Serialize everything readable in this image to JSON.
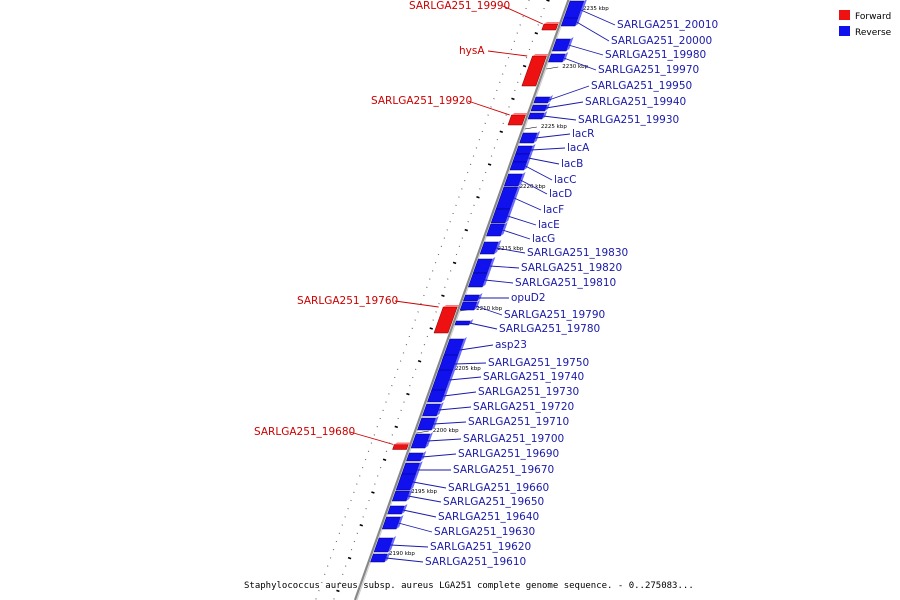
{
  "caption": "Staphylococcus aureus subsp. aureus LGA251 complete genome sequence. - 0..275083...",
  "legend": [
    {
      "label": "Forward",
      "color": "#ee1111"
    },
    {
      "label": "Reverse",
      "color": "#1111ee"
    }
  ],
  "colors": {
    "forward": "#ee1111",
    "reverse": "#1111ee",
    "forward_label": "#cc0000",
    "reverse_label": "#1a1aaa",
    "backbone": "#888888"
  },
  "scale_ticks": [
    "2235 kbp",
    "2230 kbp",
    "2225 kbp",
    "2220 kbp",
    "2215 kbp",
    "2210 kbp",
    "2205 kbp",
    "2200 kbp",
    "2195 kbp",
    "2190 kbp"
  ],
  "genes": [
    {
      "label": "SARLGA251_19990",
      "strand": "forward"
    },
    {
      "label": "hysA",
      "strand": "forward"
    },
    {
      "label": "SARLGA251_19920",
      "strand": "forward"
    },
    {
      "label": "SARLGA251_19760",
      "strand": "forward"
    },
    {
      "label": "SARLGA251_19680",
      "strand": "forward"
    },
    {
      "label": "SARLGA251_20010",
      "strand": "reverse"
    },
    {
      "label": "SARLGA251_20000",
      "strand": "reverse"
    },
    {
      "label": "SARLGA251_19980",
      "strand": "reverse"
    },
    {
      "label": "SARLGA251_19970",
      "strand": "reverse"
    },
    {
      "label": "SARLGA251_19950",
      "strand": "reverse"
    },
    {
      "label": "SARLGA251_19940",
      "strand": "reverse"
    },
    {
      "label": "SARLGA251_19930",
      "strand": "reverse"
    },
    {
      "label": "lacR",
      "strand": "reverse"
    },
    {
      "label": "lacA",
      "strand": "reverse"
    },
    {
      "label": "lacB",
      "strand": "reverse"
    },
    {
      "label": "lacC",
      "strand": "reverse"
    },
    {
      "label": "lacD",
      "strand": "reverse"
    },
    {
      "label": "lacF",
      "strand": "reverse"
    },
    {
      "label": "lacE",
      "strand": "reverse"
    },
    {
      "label": "lacG",
      "strand": "reverse"
    },
    {
      "label": "SARLGA251_19830",
      "strand": "reverse"
    },
    {
      "label": "SARLGA251_19820",
      "strand": "reverse"
    },
    {
      "label": "SARLGA251_19810",
      "strand": "reverse"
    },
    {
      "label": "opuD2",
      "strand": "reverse"
    },
    {
      "label": "SARLGA251_19790",
      "strand": "reverse"
    },
    {
      "label": "SARLGA251_19780",
      "strand": "reverse"
    },
    {
      "label": "asp23",
      "strand": "reverse"
    },
    {
      "label": "SARLGA251_19750",
      "strand": "reverse"
    },
    {
      "label": "SARLGA251_19740",
      "strand": "reverse"
    },
    {
      "label": "SARLGA251_19730",
      "strand": "reverse"
    },
    {
      "label": "SARLGA251_19720",
      "strand": "reverse"
    },
    {
      "label": "SARLGA251_19710",
      "strand": "reverse"
    },
    {
      "label": "SARLGA251_19700",
      "strand": "reverse"
    },
    {
      "label": "SARLGA251_19690",
      "strand": "reverse"
    },
    {
      "label": "SARLGA251_19670",
      "strand": "reverse"
    },
    {
      "label": "SARLGA251_19660",
      "strand": "reverse"
    },
    {
      "label": "SARLGA251_19650",
      "strand": "reverse"
    },
    {
      "label": "SARLGA251_19640",
      "strand": "reverse"
    },
    {
      "label": "SARLGA251_19630",
      "strand": "reverse"
    },
    {
      "label": "SARLGA251_19620",
      "strand": "reverse"
    },
    {
      "label": "SARLGA251_19610",
      "strand": "reverse"
    }
  ]
}
